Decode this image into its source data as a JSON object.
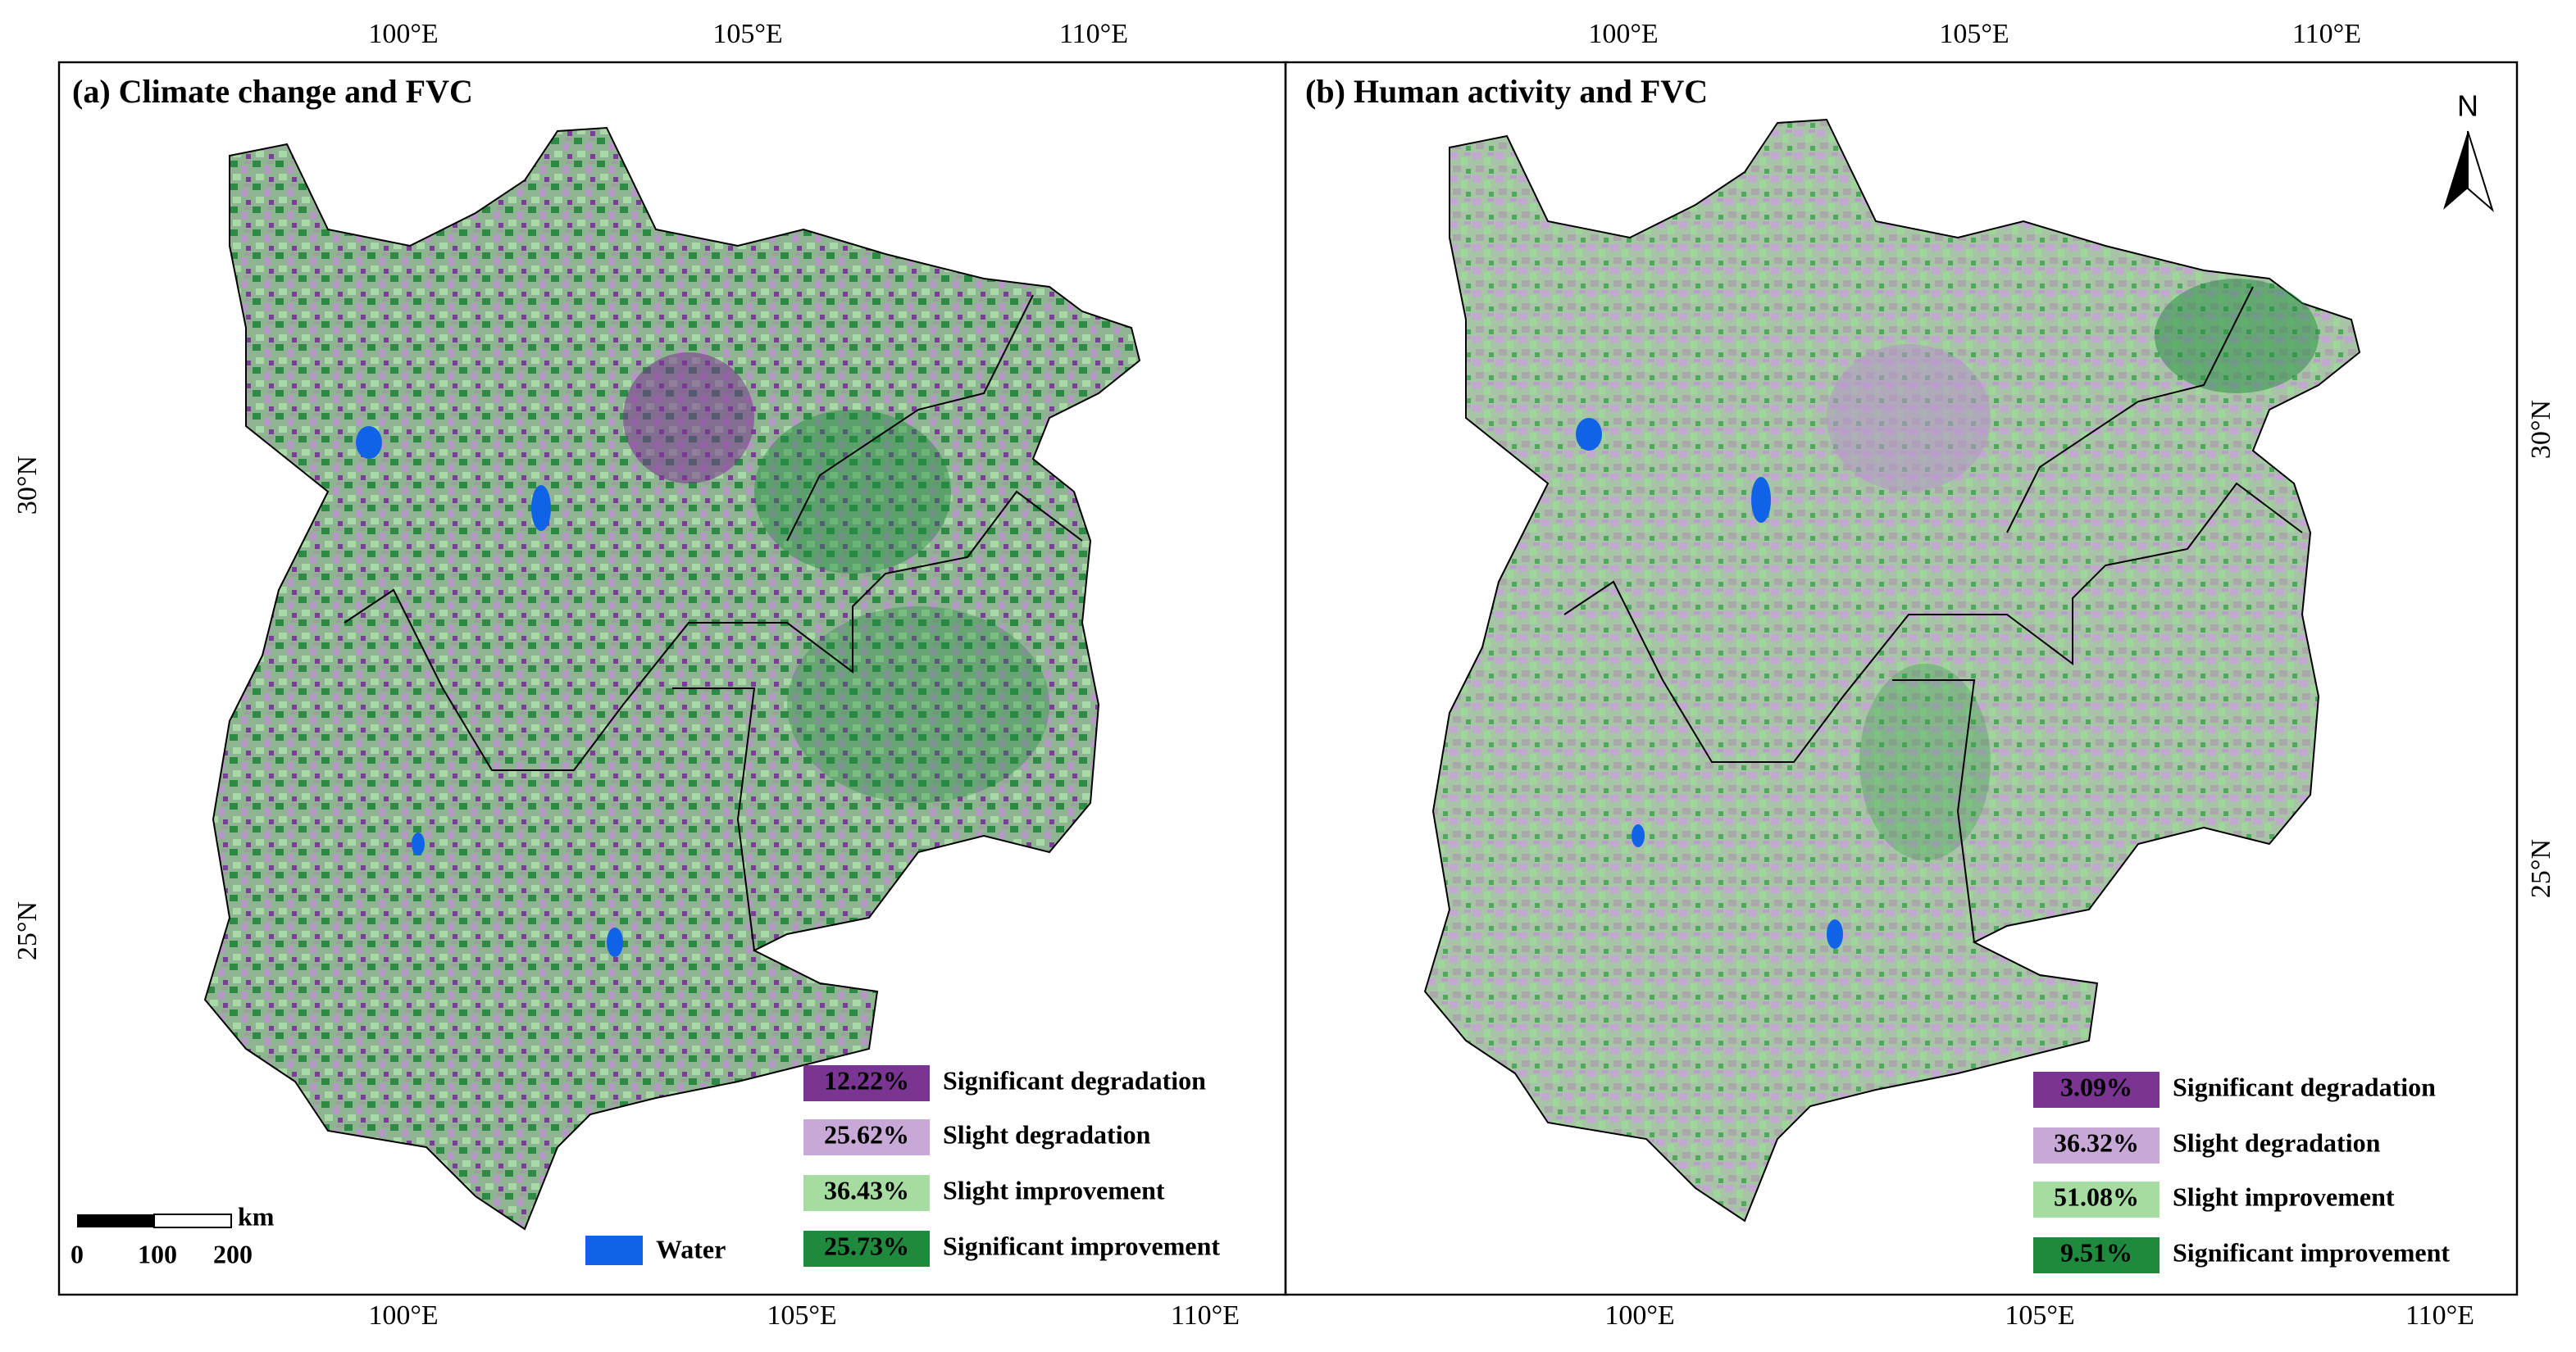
{
  "panels": [
    {
      "title": "(a) Climate change and FVC",
      "lon_top": [
        "100°E",
        "105°E",
        "110°E"
      ],
      "lon_bottom": [
        "100°E",
        "105°E",
        "110°E"
      ],
      "lat": [
        "30°N",
        "25°N"
      ],
      "legend": [
        {
          "value": "12.22%",
          "label": "Significant degradation",
          "color": "#7a3492"
        },
        {
          "value": "25.62%",
          "label": "Slight degradation",
          "color": "#c8a8d6"
        },
        {
          "value": "36.43%",
          "label": "Slight improvement",
          "color": "#a6dca2"
        },
        {
          "value": "25.73%",
          "label": "Significant improvement",
          "color": "#1f8a3d"
        }
      ],
      "water": {
        "label": "Water",
        "color": "#1062e6"
      },
      "scale_bar": {
        "unit": "km",
        "labels": [
          "0",
          "100",
          "200"
        ]
      }
    },
    {
      "title": "(b) Human activity and FVC",
      "lon_top": [
        "100°E",
        "105°E",
        "110°E"
      ],
      "lon_bottom": [
        "100°E",
        "105°E",
        "110°E"
      ],
      "lat": [
        "30°N",
        "25°N"
      ],
      "legend": [
        {
          "value": "3.09%",
          "label": "Significant degradation",
          "color": "#7a3492"
        },
        {
          "value": "36.32%",
          "label": "Slight degradation",
          "color": "#c8a8d6"
        },
        {
          "value": "51.08%",
          "label": "Slight improvement",
          "color": "#a6dca2"
        },
        {
          "value": "9.51%",
          "label": "Significant improvement",
          "color": "#1f8a3d"
        }
      ],
      "north": "N"
    }
  ]
}
